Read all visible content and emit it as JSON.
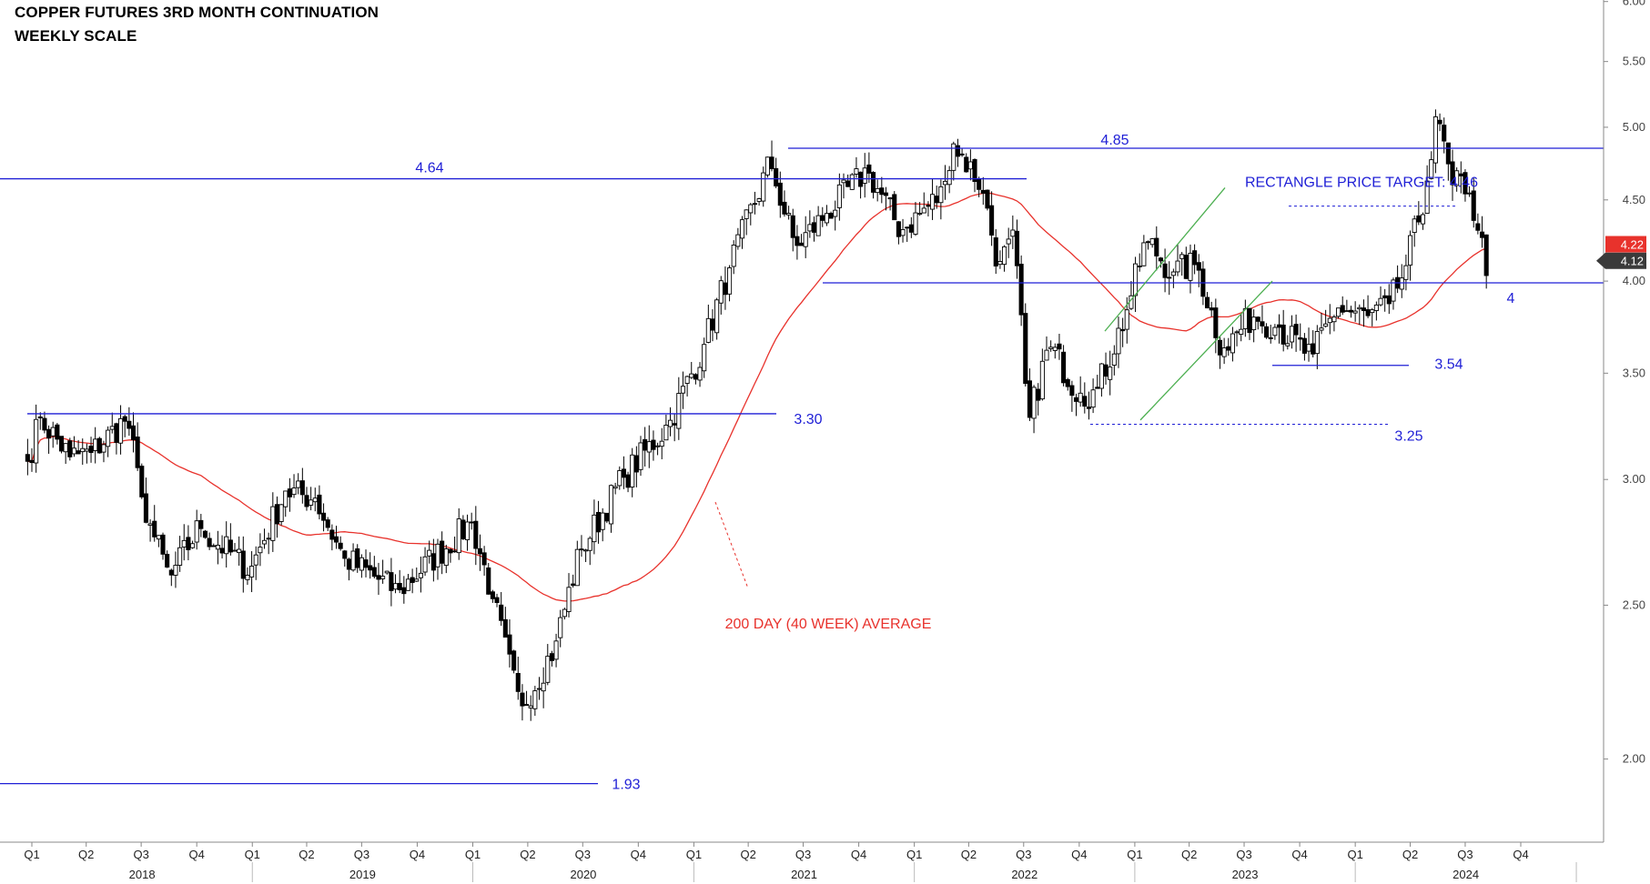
{
  "header": {
    "title_line1": "COPPER FUTURES 3RD MONTH CONTINUATION",
    "title_line2": "WEEKLY SCALE"
  },
  "colors": {
    "up": "#ffffff",
    "down": "#000000",
    "annotation_blue": "#1f1fd6",
    "ma_red": "#e8322c",
    "channel_green": "#4caf50",
    "price_badge_red": "#e8322c",
    "price_badge_dark": "#3a3a3a"
  },
  "chart_data": {
    "type": "candlestick",
    "title": "COPPER FUTURES 3RD MONTH CONTINUATION",
    "subtitle": "WEEKLY SCALE",
    "y_scale": "log",
    "ylim": [
      1.72,
      6.0
    ],
    "y_ticks": [
      "6.00",
      "5.50",
      "5.00",
      "4.50",
      "4.00",
      "3.50",
      "3.00",
      "2.50",
      "2.00"
    ],
    "x_quarter_ticks": [
      "Q1",
      "Q2",
      "Q3",
      "Q4",
      "Q1",
      "Q2",
      "Q3",
      "Q4",
      "Q1",
      "Q2",
      "Q3",
      "Q4",
      "Q1",
      "Q2",
      "Q3",
      "Q4",
      "Q1",
      "Q2",
      "Q3",
      "Q4",
      "Q1",
      "Q2",
      "Q3",
      "Q4",
      "Q1",
      "Q2",
      "Q3",
      "Q4"
    ],
    "x_year_labels": [
      "2018",
      "2019",
      "2020",
      "2021",
      "2022",
      "2023",
      "2024"
    ],
    "price_anchors": [
      {
        "date": "2017-12-25",
        "close": 3.08
      },
      {
        "date": "2018-01-15",
        "close": 3.28
      },
      {
        "date": "2018-03-05",
        "close": 3.1
      },
      {
        "date": "2018-04-10",
        "close": 3.12
      },
      {
        "date": "2018-06-08",
        "close": 3.28
      },
      {
        "date": "2018-06-29",
        "close": 2.95
      },
      {
        "date": "2018-07-20",
        "close": 2.78
      },
      {
        "date": "2018-08-17",
        "close": 2.6
      },
      {
        "date": "2018-10-05",
        "close": 2.8
      },
      {
        "date": "2018-12-28",
        "close": 2.63
      },
      {
        "date": "2019-02-25",
        "close": 2.95
      },
      {
        "date": "2019-04-15",
        "close": 2.92
      },
      {
        "date": "2019-05-31",
        "close": 2.68
      },
      {
        "date": "2019-08-30",
        "close": 2.55
      },
      {
        "date": "2019-12-30",
        "close": 2.82
      },
      {
        "date": "2020-01-31",
        "close": 2.55
      },
      {
        "date": "2020-03-20",
        "close": 2.15
      },
      {
        "date": "2020-05-15",
        "close": 2.35
      },
      {
        "date": "2020-06-26",
        "close": 2.7
      },
      {
        "date": "2020-09-04",
        "close": 3.0
      },
      {
        "date": "2020-11-20",
        "close": 3.25
      },
      {
        "date": "2021-01-15",
        "close": 3.62
      },
      {
        "date": "2021-02-26",
        "close": 4.05
      },
      {
        "date": "2021-05-07",
        "close": 4.75
      },
      {
        "date": "2021-06-18",
        "close": 4.2
      },
      {
        "date": "2021-08-06",
        "close": 4.4
      },
      {
        "date": "2021-10-15",
        "close": 4.7
      },
      {
        "date": "2021-12-10",
        "close": 4.3
      },
      {
        "date": "2022-02-18",
        "close": 4.55
      },
      {
        "date": "2022-03-04",
        "close": 4.9
      },
      {
        "date": "2022-04-22",
        "close": 4.6
      },
      {
        "date": "2022-05-20",
        "close": 4.1
      },
      {
        "date": "2022-06-17",
        "close": 4.25
      },
      {
        "date": "2022-07-08",
        "close": 3.25
      },
      {
        "date": "2022-08-12",
        "close": 3.65
      },
      {
        "date": "2022-09-30",
        "close": 3.4
      },
      {
        "date": "2022-10-28",
        "close": 3.4
      },
      {
        "date": "2022-12-16",
        "close": 3.8
      },
      {
        "date": "2023-01-20",
        "close": 4.25
      },
      {
        "date": "2023-03-03",
        "close": 4.05
      },
      {
        "date": "2023-04-14",
        "close": 4.1
      },
      {
        "date": "2023-05-26",
        "close": 3.62
      },
      {
        "date": "2023-07-14",
        "close": 3.8
      },
      {
        "date": "2023-08-25",
        "close": 3.75
      },
      {
        "date": "2023-10-20",
        "close": 3.58
      },
      {
        "date": "2023-12-01",
        "close": 3.85
      },
      {
        "date": "2024-01-19",
        "close": 3.8
      },
      {
        "date": "2024-02-23",
        "close": 3.85
      },
      {
        "date": "2024-03-22",
        "close": 4.05
      },
      {
        "date": "2024-04-26",
        "close": 4.55
      },
      {
        "date": "2024-05-17",
        "close": 5.1
      },
      {
        "date": "2024-06-07",
        "close": 4.6
      },
      {
        "date": "2024-07-05",
        "close": 4.6
      },
      {
        "date": "2024-07-19",
        "close": 4.35
      },
      {
        "date": "2024-08-09",
        "close": 4.05
      }
    ],
    "moving_average_label": "200 DAY (40 WEEK) AVERAGE",
    "annotations": {
      "h_lines": [
        {
          "label": "4.64",
          "value": 4.64
        },
        {
          "label": "4.85",
          "value": 4.85
        },
        {
          "label": "3.30",
          "value": 3.3
        },
        {
          "label": "1.93",
          "value": 1.93
        },
        {
          "label": "4",
          "value": 3.99
        },
        {
          "label": "3.54",
          "value": 3.54
        },
        {
          "label": "3.25",
          "value": 3.25
        },
        {
          "label": "RECTANGLE PRICE TARGET: 4.46",
          "value": 4.46
        }
      ]
    },
    "last_close_badge": "4.12",
    "ma_badge": "4.22",
    "grid": false,
    "legend": "none"
  }
}
